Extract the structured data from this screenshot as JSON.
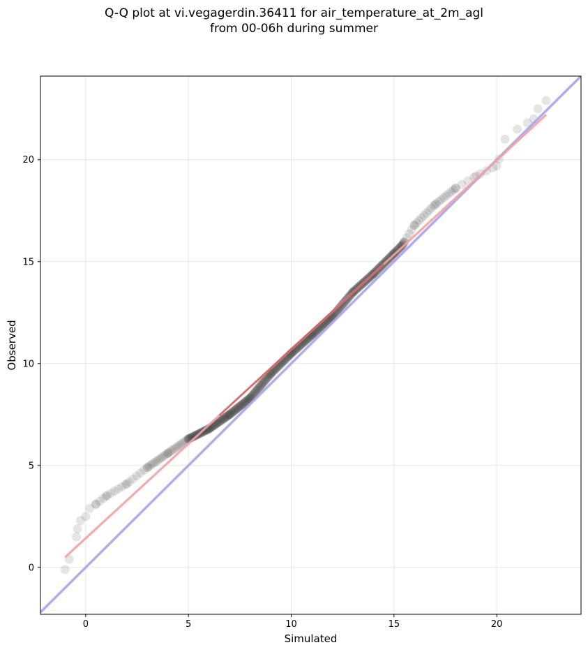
{
  "chart_data": {
    "type": "scatter",
    "title_line1": "Q-Q plot at vi.vegagerdin.36411 for air_temperature_at_2m_agl",
    "title_line2": "from 00-06h during summer",
    "xlabel": "Simulated",
    "ylabel": "Observed",
    "xlim": [
      -2.2,
      24.1
    ],
    "ylim": [
      -2.3,
      24.1
    ],
    "xticks": [
      0,
      5,
      10,
      15,
      20
    ],
    "yticks": [
      0,
      5,
      10,
      15,
      20
    ],
    "grid": true,
    "colors": {
      "points": "#333333",
      "fit_line": "#f4a0a0",
      "fit_line_dense": "#c03030",
      "identity_line": "#a8a8ee"
    },
    "fit_line": {
      "x": [
        -1.0,
        22.4
      ],
      "y": [
        0.5,
        22.2
      ]
    },
    "identity_line": {
      "x": [
        -2.2,
        24.1
      ],
      "y": [
        -2.2,
        24.1
      ]
    },
    "quantile_anchors": {
      "x": [
        -1.0,
        -0.8,
        -0.45,
        -0.4,
        -0.25,
        0.0,
        0.2,
        0.5,
        1.0,
        2.0,
        3.0,
        4.0,
        5.0,
        6.0,
        7.0,
        8.0,
        9.0,
        10.0,
        11.0,
        12.0,
        13.0,
        14.0,
        15.0,
        15.4,
        16.0,
        17.0,
        18.0,
        19.0,
        20.0,
        20.4,
        21.0,
        21.5,
        21.8,
        22.0,
        22.4
      ],
      "y": [
        -0.1,
        0.4,
        1.5,
        1.9,
        2.3,
        2.5,
        2.9,
        3.1,
        3.5,
        4.1,
        4.9,
        5.6,
        6.3,
        6.8,
        7.5,
        8.3,
        9.5,
        10.5,
        11.4,
        12.3,
        13.5,
        14.4,
        15.4,
        15.8,
        16.8,
        17.8,
        18.6,
        19.2,
        19.7,
        21.0,
        21.5,
        21.8,
        22.0,
        22.5,
        22.9
      ]
    }
  }
}
